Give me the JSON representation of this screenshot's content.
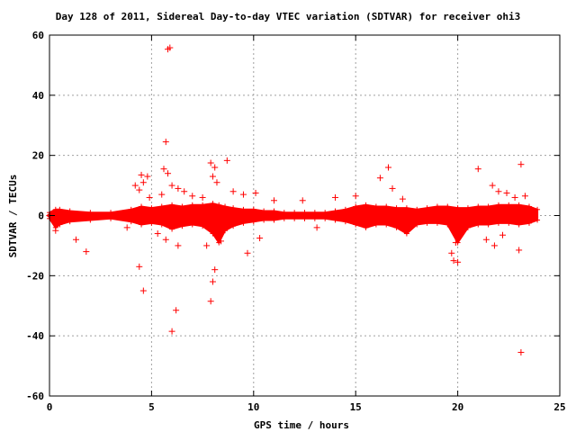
{
  "chart_data": {
    "type": "scatter",
    "title": "Day 128 of 2011, Sidereal Day-to-day VTEC variation (SDTVAR) for receiver ohi3",
    "xlabel": "GPS time / hours",
    "ylabel": "SDTVAR / TECUs",
    "xlim": [
      0,
      25
    ],
    "ylim": [
      -60,
      60
    ],
    "x_ticks": [
      0,
      5,
      10,
      15,
      20,
      25
    ],
    "y_ticks": [
      -60,
      -40,
      -20,
      0,
      20,
      40,
      60
    ],
    "grid": true,
    "marker": "+",
    "color": "#ff0000",
    "band": {
      "x": [
        0.0,
        0.3,
        0.5,
        1.0,
        2.0,
        3.0,
        4.0,
        4.5,
        5.0,
        5.5,
        6.0,
        6.5,
        7.0,
        7.5,
        8.0,
        8.3,
        8.6,
        9.0,
        9.5,
        10.0,
        10.5,
        11.0,
        11.5,
        12.0,
        12.5,
        13.0,
        13.5,
        14.0,
        14.5,
        15.0,
        15.5,
        16.0,
        16.5,
        17.0,
        17.5,
        18.0,
        18.5,
        19.0,
        19.5,
        20.0,
        20.5,
        21.0,
        21.5,
        22.0,
        22.5,
        23.0,
        23.5,
        23.9
      ],
      "upper": [
        1.0,
        2.0,
        2.0,
        1.5,
        1.0,
        1.0,
        2.0,
        3.0,
        2.5,
        3.0,
        3.5,
        3.0,
        3.5,
        3.5,
        4.0,
        3.5,
        3.0,
        2.5,
        2.0,
        2.0,
        1.5,
        1.5,
        1.0,
        1.0,
        1.0,
        1.0,
        1.0,
        1.5,
        2.0,
        3.0,
        3.5,
        3.0,
        3.0,
        2.5,
        2.5,
        2.0,
        2.5,
        3.0,
        3.0,
        2.5,
        2.5,
        3.0,
        3.0,
        3.5,
        3.5,
        3.5,
        3.0,
        2.0
      ],
      "lower": [
        -1.0,
        -4.0,
        -3.0,
        -2.0,
        -1.5,
        -1.0,
        -2.0,
        -3.0,
        -2.5,
        -3.0,
        -4.5,
        -3.5,
        -3.0,
        -3.5,
        -6.0,
        -9.0,
        -5.0,
        -3.5,
        -2.5,
        -2.0,
        -1.5,
        -1.5,
        -1.0,
        -1.0,
        -1.0,
        -1.0,
        -1.0,
        -1.5,
        -2.0,
        -3.0,
        -4.0,
        -3.0,
        -3.0,
        -4.0,
        -6.0,
        -3.0,
        -2.5,
        -2.5,
        -3.0,
        -9.0,
        -4.0,
        -3.0,
        -3.0,
        -2.5,
        -2.5,
        -3.0,
        -2.5,
        -1.5
      ]
    },
    "outliers": [
      {
        "x": 5.8,
        "y": 55.3
      },
      {
        "x": 5.9,
        "y": 55.8
      },
      {
        "x": 5.7,
        "y": 24.5
      },
      {
        "x": 5.6,
        "y": 15.5
      },
      {
        "x": 5.8,
        "y": 14.0
      },
      {
        "x": 4.5,
        "y": 13.5
      },
      {
        "x": 4.8,
        "y": 13.0
      },
      {
        "x": 4.6,
        "y": 11.0
      },
      {
        "x": 4.2,
        "y": 10.0
      },
      {
        "x": 4.4,
        "y": 8.5
      },
      {
        "x": 4.9,
        "y": 6.0
      },
      {
        "x": 5.5,
        "y": 7.0
      },
      {
        "x": 6.0,
        "y": 10.0
      },
      {
        "x": 6.3,
        "y": 9.0
      },
      {
        "x": 6.6,
        "y": 8.0
      },
      {
        "x": 7.0,
        "y": 6.5
      },
      {
        "x": 7.5,
        "y": 6.0
      },
      {
        "x": 7.9,
        "y": 17.5
      },
      {
        "x": 8.1,
        "y": 16.0
      },
      {
        "x": 8.7,
        "y": 18.3
      },
      {
        "x": 8.0,
        "y": 13.0
      },
      {
        "x": 8.2,
        "y": 11.0
      },
      {
        "x": 9.0,
        "y": 8.0
      },
      {
        "x": 9.5,
        "y": 7.0
      },
      {
        "x": 10.1,
        "y": 7.5
      },
      {
        "x": 11.0,
        "y": 5.0
      },
      {
        "x": 12.4,
        "y": 5.0
      },
      {
        "x": 14.0,
        "y": 6.0
      },
      {
        "x": 15.0,
        "y": 6.5
      },
      {
        "x": 16.6,
        "y": 16.0
      },
      {
        "x": 16.2,
        "y": 12.5
      },
      {
        "x": 16.8,
        "y": 9.0
      },
      {
        "x": 17.3,
        "y": 5.5
      },
      {
        "x": 21.0,
        "y": 15.5
      },
      {
        "x": 21.7,
        "y": 10.0
      },
      {
        "x": 22.0,
        "y": 8.0
      },
      {
        "x": 23.1,
        "y": 17.0
      },
      {
        "x": 22.4,
        "y": 7.5
      },
      {
        "x": 23.3,
        "y": 6.5
      },
      {
        "x": 22.8,
        "y": 6.0
      },
      {
        "x": 1.3,
        "y": -8.0
      },
      {
        "x": 1.8,
        "y": -12.0
      },
      {
        "x": 4.4,
        "y": -17.0
      },
      {
        "x": 4.6,
        "y": -25.0
      },
      {
        "x": 5.3,
        "y": -6.0
      },
      {
        "x": 5.7,
        "y": -8.0
      },
      {
        "x": 6.0,
        "y": -38.5
      },
      {
        "x": 6.2,
        "y": -31.5
      },
      {
        "x": 6.3,
        "y": -10.0
      },
      {
        "x": 7.7,
        "y": -10.0
      },
      {
        "x": 7.9,
        "y": -28.5
      },
      {
        "x": 8.0,
        "y": -22.0
      },
      {
        "x": 8.1,
        "y": -18.0
      },
      {
        "x": 8.4,
        "y": -8.5
      },
      {
        "x": 9.7,
        "y": -12.5
      },
      {
        "x": 10.3,
        "y": -7.5
      },
      {
        "x": 13.1,
        "y": -4.0
      },
      {
        "x": 19.7,
        "y": -12.5
      },
      {
        "x": 19.8,
        "y": -15.0
      },
      {
        "x": 20.0,
        "y": -15.5
      },
      {
        "x": 19.9,
        "y": -9.0
      },
      {
        "x": 21.4,
        "y": -8.0
      },
      {
        "x": 21.8,
        "y": -10.0
      },
      {
        "x": 23.0,
        "y": -11.5
      },
      {
        "x": 23.1,
        "y": -45.5
      },
      {
        "x": 22.2,
        "y": -6.5
      },
      {
        "x": 3.8,
        "y": -4.0
      },
      {
        "x": 0.3,
        "y": -5.0
      }
    ]
  }
}
